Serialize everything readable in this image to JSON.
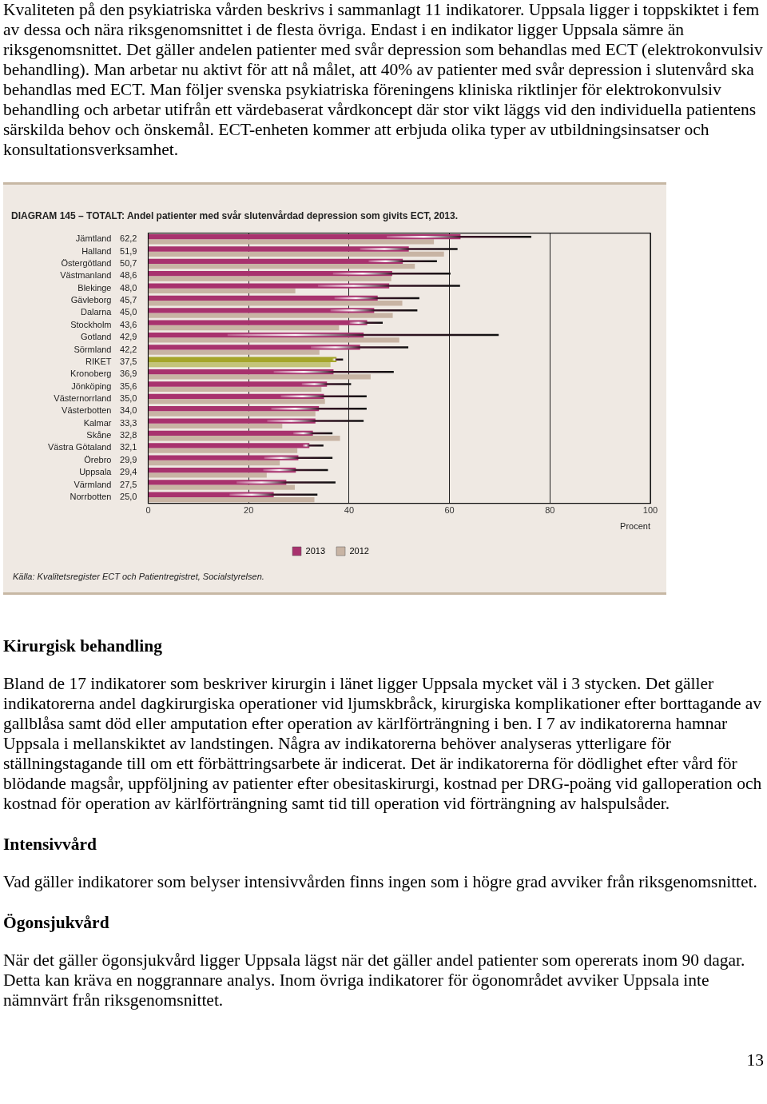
{
  "chart_data": {
    "type": "bar",
    "orientation": "horizontal",
    "title": "DIAGRAM 145 – TOTALT: Andel patienter med svår slutenvårdad depression som givits ECT, 2013.",
    "xlabel": "Procent",
    "categories": [
      "Jämtland",
      "Halland",
      "Östergötland",
      "Västmanland",
      "Blekinge",
      "Gävleborg",
      "Dalarna",
      "Stockholm",
      "Gotland",
      "Sörmland",
      "RIKET",
      "Kronoberg",
      "Jönköping",
      "Västernorrland",
      "Västerbotten",
      "Kalmar",
      "Skåne",
      "Västra Götaland",
      "Örebro",
      "Uppsala",
      "Värmland",
      "Norrbotten"
    ],
    "series": [
      {
        "name": "2013",
        "color": "#a8326e",
        "colors": [
          "#a8326e",
          "#a8326e",
          "#a8326e",
          "#a8326e",
          "#a8326e",
          "#a8326e",
          "#a8326e",
          "#a8326e",
          "#a8326e",
          "#a8326e",
          "#a5a52a",
          "#a8326e",
          "#a8326e",
          "#a8326e",
          "#a8326e",
          "#a8326e",
          "#a8326e",
          "#a8326e",
          "#a8326e",
          "#a8326e",
          "#a8326e",
          "#a8326e"
        ],
        "values": [
          62.2,
          51.9,
          50.7,
          48.6,
          48.0,
          45.7,
          45.0,
          43.6,
          42.9,
          42.2,
          37.5,
          36.9,
          35.6,
          35.0,
          34.0,
          33.3,
          32.8,
          32.1,
          29.9,
          29.4,
          27.5,
          25.0
        ],
        "value_labels": [
          "62,2",
          "51,9",
          "50,7",
          "48,6",
          "48,0",
          "45,7",
          "45,0",
          "43,6",
          "42,9",
          "42,2",
          "37,5",
          "36,9",
          "35,6",
          "35,0",
          "34,0",
          "33,3",
          "32,8",
          "32,1",
          "29,9",
          "29,4",
          "27,5",
          "25,0"
        ],
        "errors": [
          [
            47.5,
            76.3
          ],
          [
            42.2,
            61.6
          ],
          [
            43.9,
            57.5
          ],
          [
            36.8,
            60.2
          ],
          [
            33.8,
            62.1
          ],
          [
            37.1,
            54.0
          ],
          [
            36.3,
            53.6
          ],
          [
            40.1,
            46.7
          ],
          [
            15.8,
            69.8
          ],
          [
            32.4,
            51.8
          ],
          [
            36.7,
            38.8
          ],
          [
            25.0,
            48.9
          ],
          [
            30.6,
            40.4
          ],
          [
            26.4,
            43.5
          ],
          [
            24.5,
            43.5
          ],
          [
            23.7,
            42.9
          ],
          [
            28.9,
            36.7
          ],
          [
            30.8,
            34.9
          ],
          [
            23.1,
            36.7
          ],
          [
            22.9,
            35.8
          ],
          [
            17.6,
            37.3
          ],
          [
            16.2,
            33.7
          ]
        ]
      },
      {
        "name": "2012",
        "color": "#c8b4a4",
        "colors": [
          "#c8b4a4",
          "#c8b4a4",
          "#c8b4a4",
          "#c8b4a4",
          "#c8b4a4",
          "#c8b4a4",
          "#c8b4a4",
          "#c8b4a4",
          "#c8b4a4",
          "#c8b4a4",
          "#c4c47a",
          "#c8b4a4",
          "#c8b4a4",
          "#c8b4a4",
          "#c8b4a4",
          "#c8b4a4",
          "#c8b4a4",
          "#c8b4a4",
          "#c8b4a4",
          "#c8b4a4",
          "#c8b4a4",
          "#c8b4a4"
        ],
        "values": [
          56.9,
          58.9,
          53.1,
          48.4,
          29.3,
          50.6,
          48.7,
          38.0,
          50.0,
          34.1,
          36.3,
          44.3,
          34.5,
          35.2,
          33.3,
          26.7,
          38.2,
          29.7,
          26.2,
          23.6,
          29.2,
          33.1
        ]
      }
    ],
    "xlim": [
      0,
      100
    ],
    "xticks": [
      0,
      20,
      40,
      60,
      80,
      100
    ],
    "grid": "x",
    "legend": "bottom",
    "annotations": [
      "Kvaliteten på den psykiatriska vården beskrivs i sammanlagt 11 indikatorer. Uppsala ligger i toppskiktet i fem av dessa och nära riksgenomsnittet i de flesta övriga. Endast i en indikator ligger Uppsala sämre än riksgenomsnittet. Det gäller andelen patienter med svår depression som behandlas med ECT (elektrokonvulsiv behandling). Man arbetar nu aktivt för att nå målet, att 40% av patienter med svår depression i slutenvård ska behandlas med ECT. Man följer svenska psykiatriska föreningens kliniska riktlinjer för elektrokonvulsiv behandling och arbetar utifrån ett värdebaserat vårdkoncept där stor vikt läggs vid den individuella patientens särskilda behov och önskemål. ECT-enheten kommer att erbjuda olika typer av utbildningsinsatser och konsultationsverksamhet.",
      "Källa: Kvalitetsregister ECT och Patientregistret, Socialstyrelsen.",
      "Kirurgisk behandling",
      "Bland de 17 indikatorer som beskriver kirurgin i länet ligger Uppsala mycket väl i 3 stycken. Det gäller indikatorerna andel dagkirurgiska operationer vid ljumskbråck, kirurgiska komplikationer efter borttagande av gallblåsa samt död eller amputation efter operation av kärlförträngning i ben. I 7 av indikatorerna hamnar Uppsala i mellanskiktet av landstingen. Några av indikatorerna behöver analyseras ytterligare för ställningstagande till om ett förbättringsarbete är indicerat. Det är indikatorerna för dödlighet efter vård för blödande magsår, uppföljning av patienter efter obesitaskirurgi, kostnad per DRG-poäng vid galloperation och kostnad för operation av kärlförträngning samt tid till operation vid förträngning av halspulsåder.",
      "Intensivvård",
      "Vad gäller indikatorer som belyser intensivvården finns ingen som i högre grad avviker från riksgenomsnittet.",
      "Ögonsjukvård",
      "När det gäller ögonsjukvård ligger Uppsala lägst när det gäller andel patienter som opererats inom 90 dagar. Detta kan kräva en noggrannare analys. Inom övriga indikatorer för ögonområdet avviker Uppsala inte nämnvärt från riksgenomsnittet.",
      "13"
    ]
  }
}
